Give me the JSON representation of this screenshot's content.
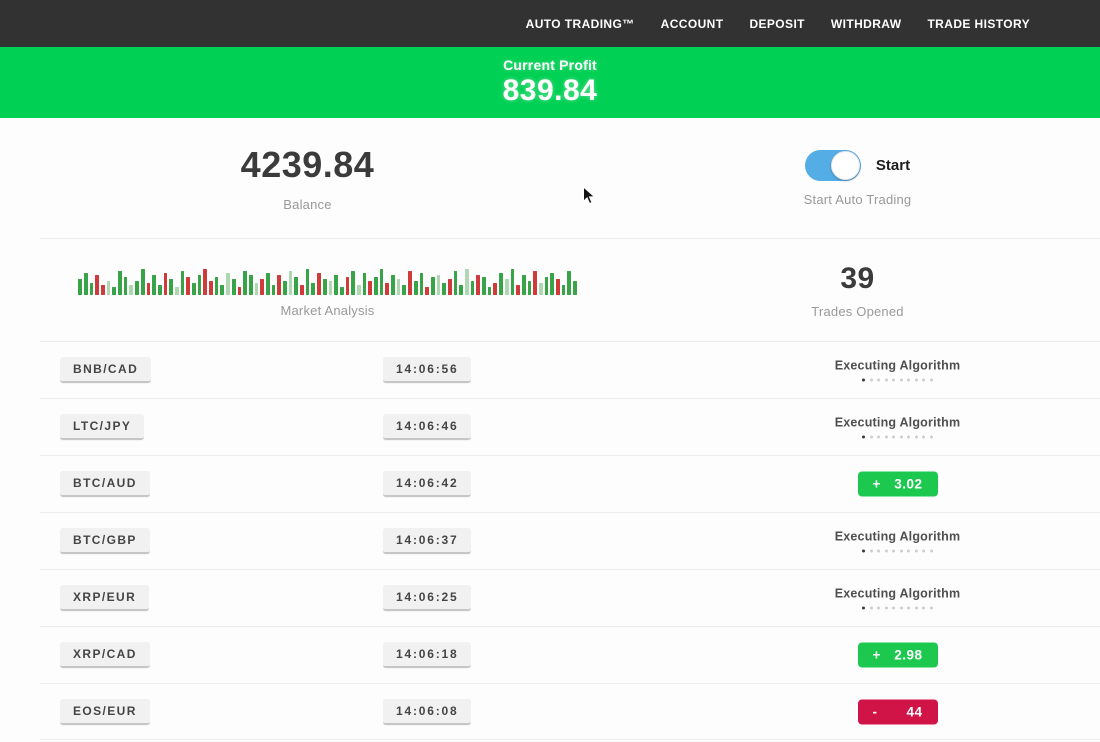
{
  "nav": {
    "items": [
      {
        "label": "AUTO TRADING™"
      },
      {
        "label": "ACCOUNT"
      },
      {
        "label": "DEPOSIT"
      },
      {
        "label": "WITHDRAW"
      },
      {
        "label": "TRADE HISTORY"
      }
    ]
  },
  "banner": {
    "label": "Current Profit",
    "value": "839.84",
    "background": "#00d053"
  },
  "dashboard": {
    "balance_value": "4239.84",
    "balance_label": "Balance",
    "toggle_label": "Start",
    "toggle_state": "on",
    "toggle_sub_label": "Start Auto Trading",
    "market_label": "Market Analysis",
    "trades_opened_value": "39",
    "trades_opened_label": "Trades Opened"
  },
  "market_bars": [
    "g16",
    "g22",
    "g12",
    "r20",
    "r10",
    "G14",
    "g8",
    "g24",
    "g18",
    "G10",
    "g14",
    "g26",
    "r12",
    "g20",
    "g10",
    "r22",
    "g16",
    "G8",
    "g24",
    "r18",
    "g12",
    "g20",
    "r26",
    "r14",
    "g18",
    "g10",
    "G22",
    "g16",
    "r8",
    "g24",
    "g20",
    "G12",
    "r16",
    "g22",
    "g10",
    "r20",
    "g14",
    "G24",
    "g18",
    "r10",
    "g26",
    "g12",
    "r22",
    "g16",
    "G14",
    "g20",
    "g8",
    "r18",
    "g24",
    "G10",
    "g22",
    "r14",
    "g18",
    "g26",
    "r12",
    "g20",
    "G16",
    "g10",
    "r24",
    "g14",
    "g22",
    "r8",
    "g18",
    "G20",
    "g12",
    "r16",
    "g24",
    "g10",
    "G26",
    "g14",
    "r20",
    "g18",
    "g8",
    "r12",
    "g22",
    "G16",
    "g26",
    "r10",
    "g20",
    "g14",
    "r24",
    "G12",
    "g18",
    "g22",
    "r16",
    "g10",
    "g24",
    "g14"
  ],
  "trades": {
    "executing_label": "Executing Algorithm",
    "rows": [
      {
        "pair": "BNB/CAD",
        "time": "14:06:56",
        "status": "executing"
      },
      {
        "pair": "LTC/JPY",
        "time": "14:06:46",
        "status": "executing"
      },
      {
        "pair": "BTC/AUD",
        "time": "14:06:42",
        "status": "profit",
        "sign": "+",
        "value": "3.02"
      },
      {
        "pair": "BTC/GBP",
        "time": "14:06:37",
        "status": "executing"
      },
      {
        "pair": "XRP/EUR",
        "time": "14:06:25",
        "status": "executing"
      },
      {
        "pair": "XRP/CAD",
        "time": "14:06:18",
        "status": "profit",
        "sign": "+",
        "value": "2.98"
      },
      {
        "pair": "EOS/EUR",
        "time": "14:06:08",
        "status": "loss",
        "sign": "-",
        "value": "44"
      }
    ]
  },
  "colors": {
    "nav_bg": "#323232",
    "banner_green": "#00d053",
    "profit_badge": "#1cc94e",
    "loss_badge": "#d01447",
    "toggle_blue": "#55ade6",
    "bar_green": "#39a447",
    "bar_red": "#cf3a3a"
  }
}
